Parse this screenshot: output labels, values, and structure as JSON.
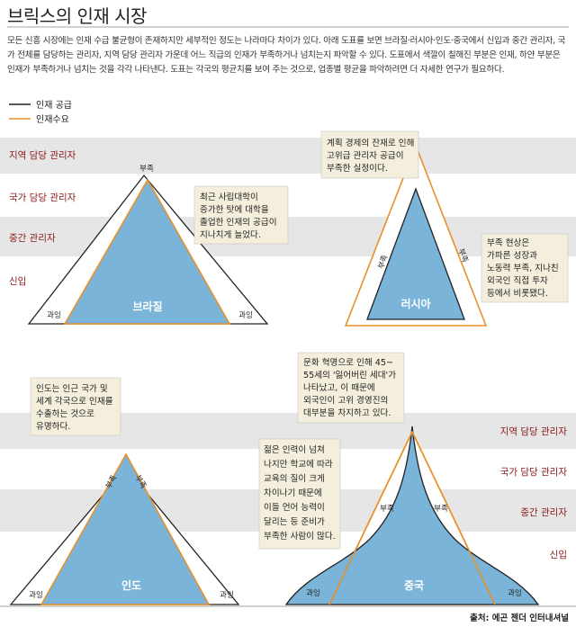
{
  "title": "브릭스의 인재 시장",
  "intro": "모든 신흥 시장에는 인재 수급 불균형이 존재하지만 세부적인 정도는 나라마다 차이가 있다. 아래 도표를 보면 브라질·러시아·인도·중국에서 신입과 중간 관리자, 국가 전체를 담당하는 관리자, 지역 담당 관리자 가운데 어느 직급의 인재가 부족하거나 넘치는지 파악할 수 있다. 도표에서 색깔이 칠해진 부분은 인재, 하얀 부분은 인재가 부족하거나 넘치는 것을 각각 나타낸다. 도표는 각국의 평균치를 보여 주는 것으로, 업종별 평균을 파악하려면 더 자세한 연구가 필요하다.",
  "legend": {
    "supply": "인재 공급",
    "demand": "인재수요"
  },
  "colors": {
    "supply_fill": "#7ab4d8",
    "demand_line": "#e8902a",
    "band": "#e6e6e6",
    "note_bg": "#f4eedd",
    "level_text": "#8b1a1a"
  },
  "levels_top": [
    "지역 담당 관리자",
    "국가 담당 관리자",
    "중간 관리자",
    "신입"
  ],
  "levels_bottom": [
    "지역 담당 관리자",
    "국가 담당 관리자",
    "중간 관리자",
    "신입"
  ],
  "countries": {
    "brazil": {
      "name": "브라질",
      "shortage": "부족",
      "surplus_left": "과잉",
      "surplus_right": "과잉",
      "note": [
        "최근 사립대학이",
        "증가한 탓에 대학을",
        "졸업한 인재의 공급이",
        "지나치게 늘었다."
      ]
    },
    "russia": {
      "name": "러시아",
      "shortage_left": "부족",
      "shortage_right": "부족",
      "note_top": [
        "계획 경제의 잔재로 인해",
        "고위급 관리자 공급이",
        "부족한 실정이다."
      ],
      "note_right": [
        "부족 현상은",
        "가파른 성장과",
        "노동력 부족, 지나친",
        "외국인 직접 투자",
        "등에서 비롯됐다."
      ]
    },
    "india": {
      "name": "인도",
      "shortage_left": "부족",
      "shortage_right": "부족",
      "surplus_left": "과잉",
      "surplus_right": "과잉",
      "note": [
        "인도는 인근 국가 및",
        "세계 각국으로 인재를",
        "수출하는 것으로",
        "유명하다."
      ]
    },
    "china": {
      "name": "중국",
      "shortage_left": "부족",
      "shortage_right": "부족",
      "surplus_left": "과잉",
      "surplus_right": "과잉",
      "note_top": [
        "문화 혁명으로 인해 45~",
        "55세의 '잃어버린 세대'가",
        "나타났고, 이 때문에",
        "외국인이 고위 경영진의",
        "대부분을 차지하고 있다."
      ],
      "note_mid": [
        "젊은 인력이 넘쳐",
        "나지만 학교에 따라",
        "교육의 질이 크게",
        "차이나기 때문에",
        "이들 언어 능력이",
        "달리는 등 준비가",
        "부족한 사람이 많다."
      ]
    }
  },
  "source": "출처: 에곤 젠더 인터내셔널"
}
